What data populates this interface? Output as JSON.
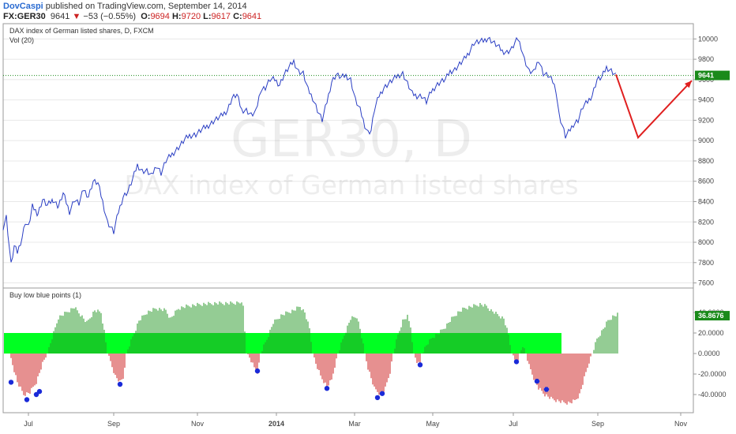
{
  "header": {
    "author": "DovCaspi",
    "published": " published on TradingView.com, September 14, 2014",
    "symbol": "FX:GER30",
    "price": "9641",
    "change_arrow": "▼",
    "change": "−53 (−0.55%)",
    "open_label": "O:",
    "open": "9694",
    "high_label": "H:",
    "high": "9720",
    "low_label": "L:",
    "low": "9617",
    "close_label": "C:",
    "close": "9641"
  },
  "watermark": {
    "symbol": "GER30, D",
    "description": "DAX index of German listed shares"
  },
  "colors": {
    "price_line": "#2b3fc4",
    "last_price": "#1a8a1a",
    "projection": "#e02020",
    "bar_up": "#2a9a2a",
    "bar_down": "#cc2222",
    "zone": "#00ff22",
    "dot": "#1a2ad8",
    "grid": "#e8e8e8",
    "border": "#9a9a9a"
  },
  "chart_data": [
    {
      "type": "line",
      "title": "DAX index of German listed shares, D, FXCM",
      "subtitle": "Vol (20)",
      "ylim": [
        7550,
        10150
      ],
      "y_ticks": [
        7600,
        7800,
        8000,
        8200,
        8400,
        8600,
        8800,
        9000,
        9200,
        9400,
        9600,
        9800,
        10000
      ],
      "x_labels": [
        "Jul",
        "Sep",
        "Nov",
        "2014",
        "Mar",
        "May",
        "Jul",
        "Sep",
        "Nov"
      ],
      "last_price": 9641,
      "last_price_label": "9641",
      "grid": false,
      "anchors": [
        [
          0,
          8150
        ],
        [
          4,
          8250
        ],
        [
          10,
          7780
        ],
        [
          14,
          7960
        ],
        [
          18,
          7900
        ],
        [
          24,
          8050
        ],
        [
          28,
          8200
        ],
        [
          32,
          8150
        ],
        [
          37,
          8350
        ],
        [
          44,
          8280
        ],
        [
          50,
          8420
        ],
        [
          56,
          8360
        ],
        [
          63,
          8420
        ],
        [
          70,
          8350
        ],
        [
          76,
          8480
        ],
        [
          84,
          8300
        ],
        [
          90,
          8420
        ],
        [
          96,
          8380
        ],
        [
          102,
          8520
        ],
        [
          108,
          8450
        ],
        [
          114,
          8600
        ],
        [
          120,
          8580
        ],
        [
          126,
          8400
        ],
        [
          132,
          8200
        ],
        [
          136,
          8150
        ],
        [
          140,
          8100
        ],
        [
          146,
          8300
        ],
        [
          152,
          8450
        ],
        [
          158,
          8500
        ],
        [
          164,
          8620
        ],
        [
          170,
          8760
        ],
        [
          176,
          8700
        ],
        [
          182,
          8700
        ],
        [
          188,
          8650
        ],
        [
          194,
          8760
        ],
        [
          200,
          8680
        ],
        [
          206,
          8800
        ],
        [
          212,
          8850
        ],
        [
          218,
          8900
        ],
        [
          224,
          8950
        ],
        [
          230,
          9010
        ],
        [
          236,
          9050
        ],
        [
          244,
          9060
        ],
        [
          252,
          9110
        ],
        [
          260,
          9150
        ],
        [
          268,
          9200
        ],
        [
          276,
          9240
        ],
        [
          284,
          9300
        ],
        [
          290,
          9420
        ],
        [
          296,
          9450
        ],
        [
          302,
          9300
        ],
        [
          308,
          9300
        ],
        [
          314,
          9250
        ],
        [
          320,
          9280
        ],
        [
          326,
          9500
        ],
        [
          332,
          9520
        ],
        [
          338,
          9600
        ],
        [
          344,
          9600
        ],
        [
          350,
          9550
        ],
        [
          356,
          9650
        ],
        [
          362,
          9720
        ],
        [
          368,
          9780
        ],
        [
          374,
          9680
        ],
        [
          380,
          9660
        ],
        [
          386,
          9500
        ],
        [
          392,
          9420
        ],
        [
          398,
          9300
        ],
        [
          404,
          9200
        ],
        [
          410,
          9380
        ],
        [
          416,
          9580
        ],
        [
          422,
          9650
        ],
        [
          428,
          9620
        ],
        [
          434,
          9640
        ],
        [
          440,
          9600
        ],
        [
          446,
          9400
        ],
        [
          452,
          9300
        ],
        [
          458,
          9150
        ],
        [
          462,
          9080
        ],
        [
          466,
          9100
        ],
        [
          470,
          9300
        ],
        [
          476,
          9440
        ],
        [
          482,
          9520
        ],
        [
          488,
          9560
        ],
        [
          494,
          9600
        ],
        [
          500,
          9640
        ],
        [
          506,
          9660
        ],
        [
          512,
          9560
        ],
        [
          518,
          9460
        ],
        [
          524,
          9440
        ],
        [
          530,
          9440
        ],
        [
          536,
          9380
        ],
        [
          542,
          9480
        ],
        [
          548,
          9540
        ],
        [
          554,
          9580
        ],
        [
          560,
          9600
        ],
        [
          566,
          9680
        ],
        [
          572,
          9700
        ],
        [
          578,
          9750
        ],
        [
          584,
          9800
        ],
        [
          590,
          9870
        ],
        [
          596,
          9960
        ],
        [
          602,
          9970
        ],
        [
          608,
          9980
        ],
        [
          614,
          10010
        ],
        [
          620,
          9970
        ],
        [
          626,
          9930
        ],
        [
          632,
          9880
        ],
        [
          638,
          9870
        ],
        [
          644,
          9900
        ],
        [
          648,
          9960
        ],
        [
          652,
          10000
        ],
        [
          656,
          9920
        ],
        [
          660,
          9800
        ],
        [
          666,
          9680
        ],
        [
          672,
          9670
        ],
        [
          678,
          9800
        ],
        [
          684,
          9660
        ],
        [
          690,
          9640
        ],
        [
          696,
          9580
        ],
        [
          700,
          9500
        ],
        [
          704,
          9250
        ],
        [
          708,
          9150
        ],
        [
          712,
          9040
        ],
        [
          716,
          9080
        ],
        [
          722,
          9160
        ],
        [
          728,
          9200
        ],
        [
          734,
          9330
        ],
        [
          740,
          9380
        ],
        [
          746,
          9450
        ],
        [
          752,
          9600
        ],
        [
          758,
          9620
        ],
        [
          764,
          9720
        ],
        [
          770,
          9690
        ],
        [
          776,
          9640
        ]
      ],
      "projection": [
        [
          776,
          9650
        ],
        [
          804,
          9030
        ],
        [
          872,
          9590
        ]
      ]
    },
    {
      "type": "bar",
      "title": "Buy low blue points (1)",
      "ylim": [
        -50,
        50
      ],
      "y_ticks": [
        -40,
        -20,
        0,
        20,
        40
      ],
      "y_tick_labels": [
        "-40.0000",
        "-20.0000",
        "0.0000",
        "20.0000",
        "40.0000"
      ],
      "last_value": 36.8676,
      "last_value_label": "36.8676",
      "zone": [
        0,
        20
      ],
      "segments": [
        [
          10,
          -5
        ],
        [
          18,
          -28
        ],
        [
          26,
          -40
        ],
        [
          34,
          -38
        ],
        [
          42,
          -28
        ],
        [
          50,
          -10
        ],
        [
          56,
          0
        ],
        [
          62,
          15
        ],
        [
          70,
          35
        ],
        [
          80,
          40
        ],
        [
          90,
          45
        ],
        [
          98,
          38
        ],
        [
          106,
          30
        ],
        [
          116,
          42
        ],
        [
          124,
          40
        ],
        [
          128,
          22
        ],
        [
          132,
          0
        ],
        [
          136,
          -8
        ],
        [
          142,
          -22
        ],
        [
          148,
          -28
        ],
        [
          152,
          -24
        ],
        [
          154,
          -12
        ],
        [
          156,
          0
        ],
        [
          164,
          16
        ],
        [
          172,
          32
        ],
        [
          182,
          40
        ],
        [
          194,
          44
        ],
        [
          206,
          42
        ],
        [
          212,
          34
        ],
        [
          222,
          44
        ],
        [
          232,
          46
        ],
        [
          250,
          48
        ],
        [
          270,
          49
        ],
        [
          290,
          49
        ],
        [
          300,
          50
        ],
        [
          304,
          46
        ],
        [
          306,
          22
        ],
        [
          308,
          0
        ],
        [
          312,
          -4
        ],
        [
          318,
          -14
        ],
        [
          322,
          -18
        ],
        [
          324,
          -10
        ],
        [
          326,
          0
        ],
        [
          334,
          14
        ],
        [
          342,
          30
        ],
        [
          352,
          37
        ],
        [
          360,
          40
        ],
        [
          368,
          42
        ],
        [
          376,
          46
        ],
        [
          382,
          40
        ],
        [
          388,
          24
        ],
        [
          392,
          0
        ],
        [
          396,
          -10
        ],
        [
          402,
          -22
        ],
        [
          410,
          -32
        ],
        [
          416,
          -26
        ],
        [
          420,
          -12
        ],
        [
          424,
          0
        ],
        [
          432,
          18
        ],
        [
          440,
          34
        ],
        [
          448,
          36
        ],
        [
          452,
          24
        ],
        [
          456,
          8
        ],
        [
          458,
          0
        ],
        [
          462,
          -14
        ],
        [
          470,
          -34
        ],
        [
          478,
          -40
        ],
        [
          484,
          -34
        ],
        [
          490,
          -18
        ],
        [
          494,
          0
        ],
        [
          500,
          18
        ],
        [
          506,
          32
        ],
        [
          512,
          36
        ],
        [
          516,
          26
        ],
        [
          520,
          0
        ],
        [
          524,
          -8
        ],
        [
          528,
          -12
        ],
        [
          530,
          0
        ],
        [
          536,
          8
        ],
        [
          544,
          16
        ],
        [
          552,
          20
        ],
        [
          560,
          26
        ],
        [
          568,
          34
        ],
        [
          576,
          40
        ],
        [
          584,
          44
        ],
        [
          594,
          46
        ],
        [
          604,
          48
        ],
        [
          612,
          46
        ],
        [
          618,
          42
        ],
        [
          626,
          38
        ],
        [
          634,
          34
        ],
        [
          640,
          18
        ],
        [
          644,
          0
        ],
        [
          648,
          -6
        ],
        [
          652,
          -8
        ],
        [
          654,
          0
        ],
        [
          658,
          8
        ],
        [
          662,
          0
        ],
        [
          666,
          -12
        ],
        [
          672,
          -24
        ],
        [
          678,
          -34
        ],
        [
          686,
          -40
        ],
        [
          694,
          -44
        ],
        [
          702,
          -46
        ],
        [
          710,
          -48
        ],
        [
          718,
          -48
        ],
        [
          724,
          -46
        ],
        [
          730,
          -40
        ],
        [
          736,
          -24
        ],
        [
          742,
          -8
        ],
        [
          746,
          0
        ],
        [
          752,
          14
        ],
        [
          760,
          24
        ],
        [
          766,
          32
        ],
        [
          772,
          36
        ],
        [
          778,
          38
        ]
      ],
      "dots": [
        [
          10,
          -28
        ],
        [
          30,
          -45
        ],
        [
          42,
          -40
        ],
        [
          46,
          -37
        ],
        [
          148,
          -30
        ],
        [
          322,
          -17
        ],
        [
          410,
          -34
        ],
        [
          474,
          -43
        ],
        [
          480,
          -39
        ],
        [
          528,
          -11
        ],
        [
          650,
          -8
        ],
        [
          676,
          -27
        ],
        [
          688,
          -35
        ]
      ]
    }
  ]
}
